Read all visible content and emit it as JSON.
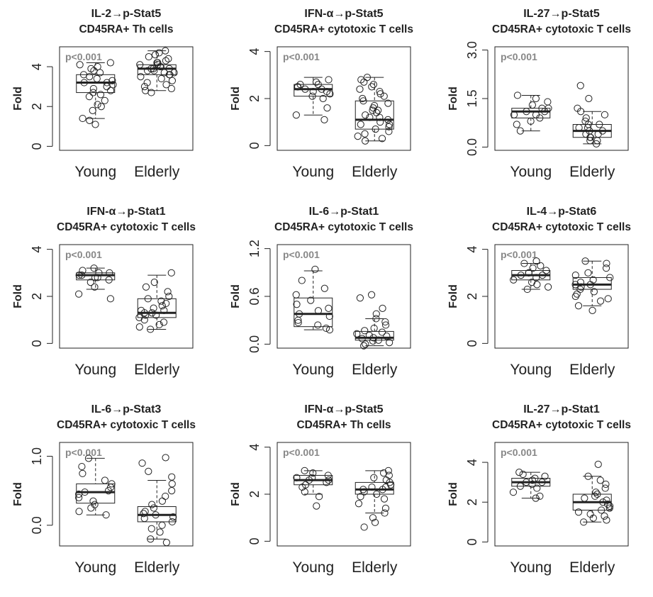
{
  "chart_data": [
    {
      "type": "box",
      "title_line1": "IL-2→p-Stat5",
      "title_line2": "CD45RA+ Th cells",
      "ylabel": "Fold",
      "ylim": [
        -0.2,
        5.0
      ],
      "yticks": [
        "0",
        "2",
        "4"
      ],
      "annotation": "p<0.001",
      "categories": [
        "Young",
        "Elderly"
      ],
      "boxes": [
        {
          "name": "Young",
          "whisker_low": 1.4,
          "q1": 2.7,
          "median": 3.2,
          "q3": 3.6,
          "whisker_high": 4.2,
          "points": [
            4.2,
            4.1,
            4.0,
            3.9,
            3.8,
            3.7,
            3.6,
            3.5,
            3.4,
            3.3,
            3.2,
            3.2,
            3.1,
            3.0,
            2.9,
            2.8,
            2.7,
            2.6,
            2.5,
            2.3,
            2.1,
            2.0,
            1.8,
            1.4,
            1.3,
            1.1
          ]
        },
        {
          "name": "Elderly",
          "whisker_low": 2.8,
          "q1": 3.6,
          "median": 3.9,
          "q3": 4.1,
          "whisker_high": 4.8,
          "points": [
            4.8,
            4.7,
            4.6,
            4.5,
            4.4,
            4.3,
            4.2,
            4.2,
            4.1,
            4.1,
            4.0,
            4.0,
            3.9,
            3.9,
            3.9,
            3.8,
            3.8,
            3.7,
            3.7,
            3.6,
            3.6,
            3.5,
            3.4,
            3.3,
            3.2,
            3.1,
            3.0,
            2.9,
            2.8,
            2.7
          ]
        }
      ]
    },
    {
      "type": "box",
      "title_line1": "IFN-α→p-Stat5",
      "title_line2": "CD45RA+ cytotoxic T cells",
      "ylabel": "Fold",
      "ylim": [
        -0.2,
        4.2
      ],
      "yticks": [
        "0",
        "2",
        "4"
      ],
      "annotation": "p<0.001",
      "categories": [
        "Young",
        "Elderly"
      ],
      "boxes": [
        {
          "name": "Young",
          "whisker_low": 1.3,
          "q1": 2.1,
          "median": 2.4,
          "q3": 2.6,
          "whisker_high": 2.9,
          "points": [
            2.8,
            2.7,
            2.6,
            2.6,
            2.5,
            2.5,
            2.4,
            2.4,
            2.3,
            2.3,
            2.2,
            2.1,
            2.0,
            1.6,
            1.3,
            1.1
          ]
        },
        {
          "name": "Elderly",
          "whisker_low": 0.2,
          "q1": 0.7,
          "median": 1.1,
          "q3": 1.9,
          "whisker_high": 2.9,
          "points": [
            2.9,
            2.8,
            2.7,
            2.6,
            2.5,
            2.4,
            2.3,
            2.2,
            2.1,
            2.0,
            1.9,
            1.8,
            1.7,
            1.6,
            1.5,
            1.4,
            1.3,
            1.2,
            1.1,
            1.0,
            0.9,
            0.8,
            0.7,
            0.6,
            0.5,
            0.4,
            0.3,
            0.2,
            1.5,
            1.2,
            0.9
          ]
        }
      ]
    },
    {
      "type": "box",
      "title_line1": "IL-27→p-Stat5",
      "title_line2": "CD45RA+ cytotoxic T cells",
      "ylabel": "Fold",
      "ylim": [
        -0.1,
        3.1
      ],
      "yticks": [
        "0.0",
        "1.5",
        "3.0"
      ],
      "annotation": "p<0.001",
      "categories": [
        "Young",
        "Elderly"
      ],
      "boxes": [
        {
          "name": "Young",
          "whisker_low": 0.5,
          "q1": 0.9,
          "median": 1.1,
          "q3": 1.2,
          "whisker_high": 1.6,
          "points": [
            1.6,
            1.5,
            1.4,
            1.3,
            1.2,
            1.2,
            1.1,
            1.1,
            1.0,
            1.0,
            0.9,
            0.8,
            0.7,
            0.5
          ]
        },
        {
          "name": "Elderly",
          "whisker_low": 0.1,
          "q1": 0.3,
          "median": 0.5,
          "q3": 0.7,
          "whisker_high": 1.1,
          "points": [
            1.9,
            1.5,
            1.2,
            1.1,
            1.0,
            0.9,
            0.8,
            0.7,
            0.7,
            0.6,
            0.6,
            0.5,
            0.5,
            0.4,
            0.4,
            0.3,
            0.3,
            0.2,
            0.2,
            0.1
          ]
        }
      ]
    },
    {
      "type": "box",
      "title_line1": "IFN-α→p-Stat1",
      "title_line2": "CD45RA+ cytotoxic T cells",
      "ylabel": "Fold",
      "ylim": [
        -0.2,
        4.2
      ],
      "yticks": [
        "0",
        "2",
        "4"
      ],
      "annotation": "p<0.001",
      "categories": [
        "Young",
        "Elderly"
      ],
      "boxes": [
        {
          "name": "Young",
          "whisker_low": 2.3,
          "q1": 2.7,
          "median": 2.9,
          "q3": 3.0,
          "whisker_high": 3.2,
          "points": [
            3.2,
            3.1,
            3.0,
            3.0,
            2.9,
            2.9,
            2.8,
            2.8,
            2.7,
            2.6,
            2.4,
            2.1,
            1.9
          ]
        },
        {
          "name": "Elderly",
          "whisker_low": 0.6,
          "q1": 1.1,
          "median": 1.3,
          "q3": 1.9,
          "whisker_high": 2.9,
          "points": [
            3.0,
            2.6,
            2.4,
            2.2,
            2.0,
            1.9,
            1.8,
            1.7,
            1.6,
            1.5,
            1.4,
            1.4,
            1.3,
            1.3,
            1.2,
            1.2,
            1.1,
            1.0,
            0.9,
            0.8,
            0.7,
            0.6
          ]
        }
      ]
    },
    {
      "type": "box",
      "title_line1": "IL-6→p-Stat1",
      "title_line2": "CD45RA+ cytotoxic T cells",
      "ylabel": "Fold",
      "ylim": [
        -0.05,
        1.25
      ],
      "yticks": [
        "0.0",
        "0.6",
        "1.2"
      ],
      "annotation": "p<0.001",
      "categories": [
        "Young",
        "Elderly"
      ],
      "boxes": [
        {
          "name": "Young",
          "whisker_low": 0.18,
          "q1": 0.22,
          "median": 0.38,
          "q3": 0.58,
          "whisker_high": 0.92,
          "points": [
            0.94,
            0.8,
            0.7,
            0.62,
            0.55,
            0.5,
            0.45,
            0.42,
            0.38,
            0.35,
            0.3,
            0.27,
            0.24,
            0.2,
            0.18
          ]
        },
        {
          "name": "Elderly",
          "whisker_low": -0.02,
          "q1": 0.05,
          "median": 0.08,
          "q3": 0.16,
          "whisker_high": 0.32,
          "points": [
            0.62,
            0.58,
            0.45,
            0.38,
            0.32,
            0.28,
            0.24,
            0.2,
            0.17,
            0.15,
            0.13,
            0.11,
            0.1,
            0.08,
            0.07,
            0.05,
            0.04,
            0.02,
            0.0,
            -0.02
          ]
        }
      ]
    },
    {
      "type": "box",
      "title_line1": "IL-4→p-Stat6",
      "title_line2": "CD45RA+ cytotoxic T cells",
      "ylabel": "Fold",
      "ylim": [
        -0.2,
        4.2
      ],
      "yticks": [
        "0",
        "2",
        "4"
      ],
      "annotation": "p<0.001",
      "categories": [
        "Young",
        "Elderly"
      ],
      "boxes": [
        {
          "name": "Young",
          "whisker_low": 2.3,
          "q1": 2.7,
          "median": 2.9,
          "q3": 3.1,
          "whisker_high": 3.4,
          "points": [
            3.5,
            3.4,
            3.3,
            3.2,
            3.1,
            3.0,
            3.0,
            2.9,
            2.9,
            2.8,
            2.7,
            2.6,
            2.5,
            2.4,
            2.3
          ]
        },
        {
          "name": "Elderly",
          "whisker_low": 1.6,
          "q1": 2.3,
          "median": 2.5,
          "q3": 2.8,
          "whisker_high": 3.5,
          "points": [
            3.5,
            3.4,
            3.2,
            3.0,
            2.9,
            2.8,
            2.7,
            2.6,
            2.5,
            2.5,
            2.4,
            2.3,
            2.2,
            2.1,
            2.0,
            1.9,
            1.8,
            1.6,
            1.4
          ]
        }
      ]
    },
    {
      "type": "box",
      "title_line1": "IL-6→p-Stat3",
      "title_line2": "CD45RA+ cytotoxic T cells",
      "ylabel": "Fold",
      "ylim": [
        -0.3,
        1.2
      ],
      "yticks": [
        "0.0",
        "1.0"
      ],
      "annotation": "p<0.001",
      "categories": [
        "Young",
        "Elderly"
      ],
      "boxes": [
        {
          "name": "Young",
          "whisker_low": 0.15,
          "q1": 0.32,
          "median": 0.48,
          "q3": 0.6,
          "whisker_high": 0.97,
          "points": [
            0.97,
            0.85,
            0.75,
            0.65,
            0.6,
            0.55,
            0.5,
            0.48,
            0.45,
            0.4,
            0.35,
            0.3,
            0.25,
            0.2,
            0.15
          ]
        },
        {
          "name": "Elderly",
          "whisker_low": -0.2,
          "q1": 0.05,
          "median": 0.15,
          "q3": 0.27,
          "whisker_high": 0.65,
          "points": [
            0.98,
            0.9,
            0.78,
            0.7,
            0.6,
            0.5,
            0.42,
            0.35,
            0.3,
            0.25,
            0.2,
            0.17,
            0.15,
            0.12,
            0.1,
            0.05,
            0.0,
            -0.05,
            -0.1,
            -0.2,
            -0.25
          ]
        }
      ]
    },
    {
      "type": "box",
      "title_line1": "IFN-α→p-Stat5",
      "title_line2": "CD45RA+ Th cells",
      "ylabel": "Fold",
      "ylim": [
        -0.2,
        4.2
      ],
      "yticks": [
        "0",
        "2",
        "4"
      ],
      "annotation": "p<0.001",
      "categories": [
        "Young",
        "Elderly"
      ],
      "boxes": [
        {
          "name": "Young",
          "whisker_low": 2.0,
          "q1": 2.4,
          "median": 2.6,
          "q3": 2.8,
          "whisker_high": 3.0,
          "points": [
            3.0,
            2.9,
            2.8,
            2.7,
            2.7,
            2.6,
            2.6,
            2.5,
            2.4,
            2.3,
            2.1,
            1.9,
            1.5
          ]
        },
        {
          "name": "Elderly",
          "whisker_low": 1.2,
          "q1": 2.0,
          "median": 2.2,
          "q3": 2.5,
          "whisker_high": 3.0,
          "points": [
            3.0,
            2.9,
            2.8,
            2.7,
            2.6,
            2.5,
            2.4,
            2.3,
            2.3,
            2.2,
            2.2,
            2.1,
            2.0,
            1.9,
            1.8,
            1.6,
            1.4,
            1.2,
            1.0,
            0.8,
            0.6
          ]
        }
      ]
    },
    {
      "type": "box",
      "title_line1": "IL-27→p-Stat1",
      "title_line2": "CD45RA+ cytotoxic T cells",
      "ylabel": "Fold",
      "ylim": [
        -0.2,
        5.0
      ],
      "yticks": [
        "0",
        "2",
        "4"
      ],
      "annotation": "p<0.001",
      "categories": [
        "Young",
        "Elderly"
      ],
      "boxes": [
        {
          "name": "Young",
          "whisker_low": 2.2,
          "q1": 2.8,
          "median": 3.0,
          "q3": 3.2,
          "whisker_high": 3.5,
          "points": [
            3.5,
            3.4,
            3.3,
            3.2,
            3.1,
            3.0,
            3.0,
            2.9,
            2.8,
            2.7,
            2.5,
            2.3,
            2.2
          ]
        },
        {
          "name": "Elderly",
          "whisker_low": 1.0,
          "q1": 1.6,
          "median": 2.0,
          "q3": 2.4,
          "whisker_high": 3.3,
          "points": [
            3.9,
            3.3,
            3.1,
            2.9,
            2.7,
            2.5,
            2.4,
            2.3,
            2.2,
            2.1,
            2.0,
            1.9,
            1.8,
            1.7,
            1.6,
            1.5,
            1.4,
            1.3,
            1.2,
            1.1,
            1.0
          ]
        }
      ]
    }
  ]
}
